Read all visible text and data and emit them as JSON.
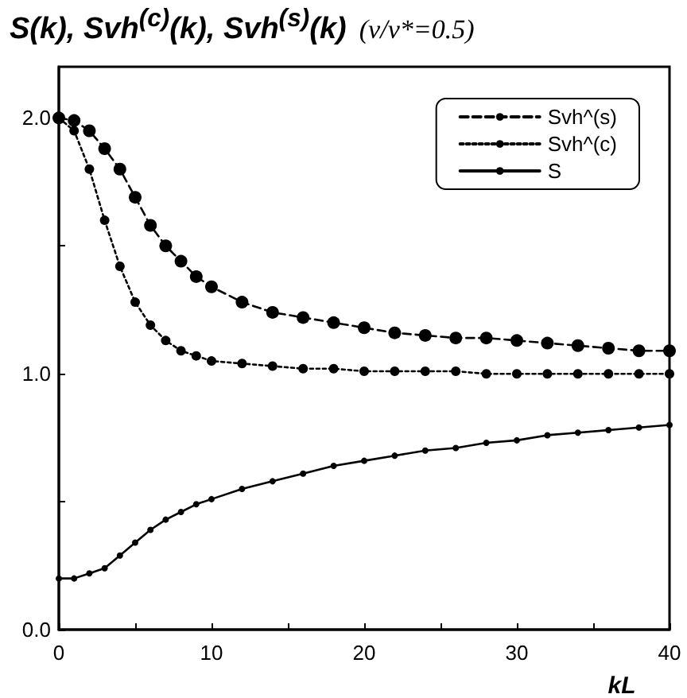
{
  "chart_data": {
    "type": "line",
    "title": "S(k), Svh$^{(c)}$(k), Svh$^{(s)}$(k)",
    "subtitle": "(ν/ν*=0.5)",
    "xlabel": "kL",
    "x": [
      0,
      1,
      2,
      3,
      4,
      5,
      6,
      7,
      8,
      9,
      10,
      12,
      14,
      16,
      18,
      20,
      22,
      24,
      26,
      28,
      30,
      32,
      34,
      36,
      38,
      40
    ],
    "series": [
      {
        "name": "Svh^(s)",
        "color": "#000000",
        "line_style": "dashed",
        "values": [
          2.0,
          1.99,
          1.95,
          1.88,
          1.8,
          1.69,
          1.58,
          1.5,
          1.44,
          1.38,
          1.34,
          1.28,
          1.24,
          1.22,
          1.2,
          1.18,
          1.16,
          1.15,
          1.14,
          1.14,
          1.13,
          1.12,
          1.11,
          1.1,
          1.09,
          1.09
        ]
      },
      {
        "name": "Svh^(c)",
        "color": "#000000",
        "line_style": "dotted",
        "values": [
          2.0,
          1.95,
          1.8,
          1.6,
          1.42,
          1.28,
          1.19,
          1.13,
          1.09,
          1.07,
          1.05,
          1.04,
          1.03,
          1.02,
          1.02,
          1.01,
          1.01,
          1.01,
          1.01,
          1.0,
          1.0,
          1.0,
          1.0,
          1.0,
          1.0,
          1.0
        ]
      },
      {
        "name": "S",
        "color": "#000000",
        "line_style": "solid",
        "values": [
          0.2,
          0.2,
          0.22,
          0.24,
          0.29,
          0.34,
          0.39,
          0.43,
          0.46,
          0.49,
          0.51,
          0.55,
          0.58,
          0.61,
          0.64,
          0.66,
          0.68,
          0.7,
          0.71,
          0.73,
          0.74,
          0.76,
          0.77,
          0.78,
          0.79,
          0.8
        ]
      }
    ],
    "xlim": [
      0,
      40
    ],
    "xticks": [
      0,
      {
        "value": 5,
        "label": null
      },
      10,
      {
        "value": 15,
        "label": null
      },
      20,
      {
        "value": 25,
        "label": null
      },
      30,
      {
        "value": 35,
        "label": null
      },
      40
    ],
    "ylim": [
      0,
      2.2
    ],
    "yticks": [
      {
        "value": 0,
        "label": "0.0"
      },
      {
        "value": 0.5,
        "label": null
      },
      {
        "value": 1,
        "label": "1.0"
      },
      {
        "value": 1.5,
        "label": null
      },
      {
        "value": 2,
        "label": "2.0"
      }
    ],
    "marker": "circle",
    "grid": false,
    "legend": "top right"
  }
}
